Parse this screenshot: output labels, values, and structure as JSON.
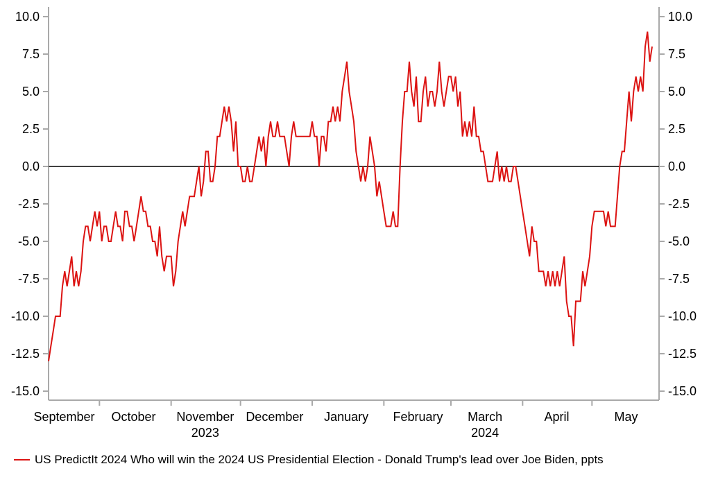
{
  "chart_data": {
    "type": "line",
    "x_axis": {
      "month_labels": [
        "September",
        "October",
        "November",
        "December",
        "January",
        "February",
        "March",
        "April",
        "May"
      ],
      "year_labels": [
        {
          "text": "2023",
          "under_month_index": 2
        },
        {
          "text": "2024",
          "under_month_index": 6
        }
      ]
    },
    "y_axis": {
      "min": -15.0,
      "max": 10.0,
      "tick_interval": 2.5,
      "tick_labels": [
        "10.0",
        "7.5",
        "5.0",
        "2.5",
        "0.0",
        "-2.5",
        "-5.0",
        "-7.5",
        "-10.0",
        "-12.5",
        "-15.0"
      ],
      "sides": [
        "left",
        "right"
      ]
    },
    "zero_line": true,
    "colors": {
      "series": "#dc1312",
      "axis": "#a9a9a9",
      "zero_line": "#404040"
    },
    "series": [
      {
        "name": "US PredictIt 2024 Who will win the 2024 US Presidential Election - Donald Trump's lead over Joe Biden, ppts",
        "unit": "ppts",
        "color": "#dc1312",
        "frequency": "daily",
        "start_date": "2023-09-09",
        "end_date": "2024-05-27",
        "values": [
          -13,
          -12,
          -11,
          -10,
          -10,
          -10,
          -8,
          -7,
          -8,
          -7,
          -6,
          -8,
          -7,
          -8,
          -7,
          -5,
          -4,
          -4,
          -5,
          -4,
          -3,
          -4,
          -3,
          -5,
          -4,
          -4,
          -5,
          -5,
          -4,
          -3,
          -4,
          -4,
          -5,
          -3,
          -3,
          -4,
          -4,
          -5,
          -4,
          -3,
          -2,
          -3,
          -3,
          -4,
          -4,
          -5,
          -5,
          -6,
          -4,
          -6,
          -7,
          -6,
          -6,
          -6,
          -8,
          -7,
          -5,
          -4,
          -3,
          -4,
          -3,
          -2,
          -2,
          -2,
          -1,
          0,
          -2,
          -1,
          1,
          1,
          -1,
          -1,
          0,
          2,
          2,
          3,
          4,
          3,
          4,
          3,
          1,
          3,
          0,
          0,
          -1,
          -1,
          0,
          -1,
          -1,
          0,
          1,
          2,
          1,
          2,
          0,
          2,
          3,
          2,
          2,
          3,
          2,
          2,
          2,
          1,
          0,
          2,
          3,
          2,
          2,
          2,
          2,
          2,
          2,
          2,
          3,
          2,
          2,
          0,
          2,
          2,
          1,
          3,
          3,
          4,
          3,
          4,
          3,
          5,
          6,
          7,
          5,
          4,
          3,
          1,
          0,
          -1,
          0,
          -1,
          0,
          2,
          1,
          0,
          -2,
          -1,
          -2,
          -3,
          -4,
          -4,
          -4,
          -3,
          -4,
          -4,
          0,
          3,
          5,
          5,
          7,
          5,
          4,
          6,
          3,
          3,
          5,
          6,
          4,
          5,
          5,
          4,
          5,
          7,
          5,
          4,
          5,
          6,
          6,
          5,
          6,
          4,
          5,
          2,
          3,
          2,
          3,
          2,
          4,
          2,
          2,
          1,
          1,
          0,
          -1,
          -1,
          -1,
          0,
          1,
          -1,
          0,
          -1,
          0,
          -1,
          -1,
          0,
          0,
          -1,
          -2,
          -3,
          -4,
          -5,
          -6,
          -4,
          -5,
          -5,
          -7,
          -7,
          -7,
          -8,
          -7,
          -8,
          -7,
          -8,
          -7,
          -8,
          -7,
          -6,
          -9,
          -10,
          -10,
          -12,
          -9,
          -9,
          -9,
          -7,
          -8,
          -7,
          -6,
          -4,
          -3,
          -3,
          -3,
          -3,
          -3,
          -4,
          -3,
          -4,
          -4,
          -4,
          -2,
          0,
          1,
          1,
          3,
          5,
          3,
          5,
          6,
          5,
          6,
          5,
          8,
          9,
          7,
          8
        ]
      }
    ]
  }
}
